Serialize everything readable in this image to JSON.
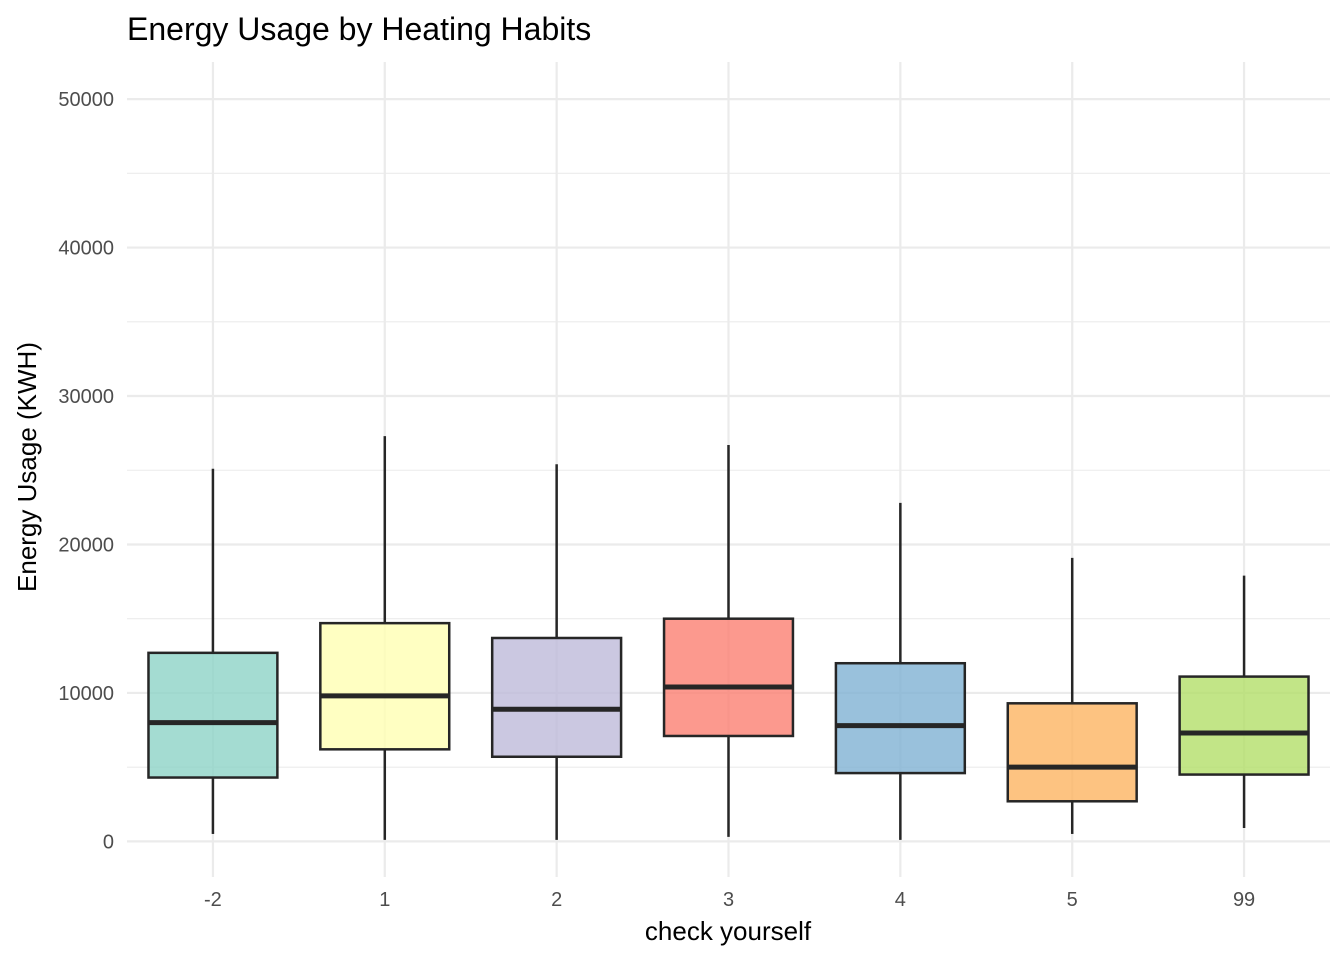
{
  "chart_data": {
    "type": "boxplot",
    "title": "Energy Usage by Heating Habits",
    "xlabel": "check yourself",
    "ylabel": "Energy Usage (KWH)",
    "ylim": [
      -2400,
      52500
    ],
    "yticks": [
      0,
      10000,
      20000,
      30000,
      40000,
      50000
    ],
    "ytick_labels": [
      "0",
      "10000",
      "20000",
      "30000",
      "40000",
      "50000"
    ],
    "grid": true,
    "legend": "none",
    "categories": [
      "-2",
      "1",
      "2",
      "3",
      "4",
      "5",
      "99"
    ],
    "boxes": [
      {
        "category": "-2",
        "min": 500,
        "q1": 4300,
        "median": 8000,
        "q3": 12700,
        "max": 25100,
        "color": "#8dd3c7"
      },
      {
        "category": "1",
        "min": 100,
        "q1": 6200,
        "median": 9800,
        "q3": 14700,
        "max": 27300,
        "color": "#ffffb3"
      },
      {
        "category": "2",
        "min": 100,
        "q1": 5700,
        "median": 8900,
        "q3": 13700,
        "max": 25400,
        "color": "#bebada"
      },
      {
        "category": "3",
        "min": 300,
        "q1": 7100,
        "median": 10400,
        "q3": 15000,
        "max": 26700,
        "color": "#fb8072"
      },
      {
        "category": "4",
        "min": 100,
        "q1": 4600,
        "median": 7800,
        "q3": 12000,
        "max": 22800,
        "color": "#80b1d3"
      },
      {
        "category": "5",
        "min": 500,
        "q1": 2700,
        "median": 5000,
        "q3": 9300,
        "max": 19100,
        "color": "#fdb462"
      },
      {
        "category": "99",
        "min": 900,
        "q1": 4500,
        "median": 7300,
        "q3": 11100,
        "max": 17900,
        "color": "#b3de69"
      }
    ]
  }
}
